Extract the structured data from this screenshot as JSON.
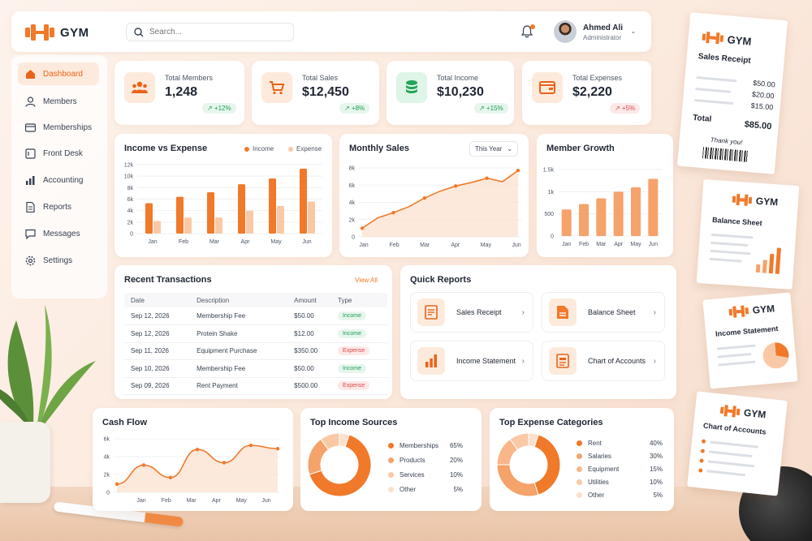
{
  "brand": {
    "name": "GYM"
  },
  "search": {
    "placeholder": "Search..."
  },
  "user": {
    "name": "Ahmed Ali",
    "role": "Administrator"
  },
  "nav": [
    {
      "label": "Dashboard",
      "icon": "home-icon",
      "active": true
    },
    {
      "label": "Members",
      "icon": "user-icon"
    },
    {
      "label": "Memberships",
      "icon": "card-icon"
    },
    {
      "label": "Front Desk",
      "icon": "desk-icon"
    },
    {
      "label": "Accounting",
      "icon": "bar-chart-icon"
    },
    {
      "label": "Reports",
      "icon": "document-icon"
    },
    {
      "label": "Messages",
      "icon": "message-icon"
    },
    {
      "label": "Settings",
      "icon": "gear-icon"
    }
  ],
  "stats": [
    {
      "label": "Total Members",
      "value": "1,248",
      "change": "↗ +12%",
      "trend": "up",
      "icon": "members-icon"
    },
    {
      "label": "Total Sales",
      "value": "$12,450",
      "change": "↗ +8%",
      "trend": "up",
      "icon": "cart-icon"
    },
    {
      "label": "Total Income",
      "value": "$10,230",
      "change": "↗ +15%",
      "trend": "up",
      "icon": "coins-icon"
    },
    {
      "label": "Total Expenses",
      "value": "$2,220",
      "change": "↗ +5%",
      "trend": "down",
      "icon": "wallet-icon"
    }
  ],
  "income_expense": {
    "title": "Income vs Expense",
    "legend_income": "Income",
    "legend_expense": "Expense"
  },
  "monthly_sales": {
    "title": "Monthly Sales",
    "filter": "This Year"
  },
  "member_growth": {
    "title": "Member Growth"
  },
  "cash_flow": {
    "title": "Cash Flow"
  },
  "transactions": {
    "title": "Recent Transactions",
    "view_all": "View All",
    "headers": [
      "Date",
      "Description",
      "Amount",
      "Type"
    ],
    "rows": [
      {
        "date": "Sep 12, 2026",
        "description": "Membership Fee",
        "amount": "$50.00",
        "type": "Income"
      },
      {
        "date": "Sep 12, 2026",
        "description": "Protein Shake",
        "amount": "$12.00",
        "type": "Income"
      },
      {
        "date": "Sep 11, 2026",
        "description": "Equipment Purchase",
        "amount": "$350.00",
        "type": "Expense"
      },
      {
        "date": "Sep 10, 2026",
        "description": "Membership Fee",
        "amount": "$50.00",
        "type": "Income"
      },
      {
        "date": "Sep 09, 2026",
        "description": "Rent Payment",
        "amount": "$500.00",
        "type": "Expense"
      }
    ]
  },
  "quick_reports": {
    "title": "Quick Reports",
    "items": [
      {
        "label": "Sales Receipt",
        "icon": "receipt-icon"
      },
      {
        "label": "Balance Sheet",
        "icon": "document-icon"
      },
      {
        "label": "Income Statement",
        "icon": "bar-chart-icon"
      },
      {
        "label": "Chart of Accounts",
        "icon": "list-icon"
      }
    ]
  },
  "top_income": {
    "title": "Top Income Sources",
    "items": [
      {
        "label": "Memberships",
        "pct": "65%"
      },
      {
        "label": "Products",
        "pct": "20%"
      },
      {
        "label": "Services",
        "pct": "10%"
      },
      {
        "label": "Other",
        "pct": "5%"
      }
    ]
  },
  "top_expense": {
    "title": "Top Expense Categories",
    "items": [
      {
        "label": "Rent",
        "pct": "40%"
      },
      {
        "label": "Salaries",
        "pct": "30%"
      },
      {
        "label": "Equipment",
        "pct": "15%"
      },
      {
        "label": "Utilities",
        "pct": "10%"
      },
      {
        "label": "Other",
        "pct": "5%"
      }
    ]
  },
  "papers": {
    "receipt": {
      "brand": "GYM",
      "title": "Sales Receipt",
      "amounts": [
        "$50.00",
        "$20.00",
        "$15.00"
      ],
      "total_label": "Total",
      "total": "$85.00",
      "thanks": "Thank you!"
    },
    "balance": {
      "brand": "GYM",
      "title": "Balance Sheet"
    },
    "income": {
      "brand": "GYM",
      "title": "Income Statement"
    },
    "accounts": {
      "brand": "GYM",
      "title": "Chart of Accounts"
    }
  },
  "colors": {
    "accent": "#f0792a",
    "accent_light": "#f9c9a6",
    "green": "#1f9d55",
    "red": "#d94848"
  },
  "chart_data": [
    {
      "type": "bar",
      "title": "Income vs Expense",
      "categories": [
        "Jan",
        "Feb",
        "Mar",
        "Apr",
        "May",
        "Jun"
      ],
      "series": [
        {
          "name": "Income",
          "values": [
            5.3,
            6.4,
            7.2,
            8.6,
            9.6,
            11.3
          ]
        },
        {
          "name": "Expense",
          "values": [
            2.2,
            2.8,
            2.8,
            4.0,
            4.8,
            5.6
          ]
        }
      ],
      "yticks": [
        "0",
        "2k",
        "4k",
        "6k",
        "8k",
        "10k",
        "12k"
      ],
      "ylim": [
        0,
        12
      ]
    },
    {
      "type": "line",
      "title": "Monthly Sales",
      "x": [
        "Jan",
        "Feb",
        "Mar",
        "Apr",
        "May",
        "Jun"
      ],
      "points": [
        1.0,
        2.2,
        2.8,
        3.5,
        4.5,
        5.3,
        5.9,
        6.3,
        6.8,
        6.4,
        7.7
      ],
      "yticks": [
        "0",
        "2k",
        "4k",
        "6k",
        "8k"
      ],
      "ylim": [
        0,
        8
      ]
    },
    {
      "type": "bar",
      "title": "Member Growth",
      "categories": [
        "Jan",
        "Feb",
        "Mar",
        "Apr",
        "May",
        "Jun"
      ],
      "values": [
        600,
        720,
        850,
        1000,
        1100,
        1290
      ],
      "yticks": [
        "0",
        "500",
        "1k",
        "1.5k"
      ],
      "ylim": [
        0,
        1500
      ]
    },
    {
      "type": "area",
      "title": "Cash Flow",
      "x": [
        "Jan",
        "Feb",
        "Mar",
        "Apr",
        "May",
        "Jun"
      ],
      "points": [
        1.0,
        3.3,
        1.8,
        5.2,
        3.6,
        5.7,
        5.3
      ],
      "yticks": [
        "0",
        "2k",
        "4k",
        "6k"
      ],
      "ylim": [
        0,
        6.5
      ]
    },
    {
      "type": "pie",
      "title": "Top Income Sources",
      "labels": [
        "Memberships",
        "Products",
        "Services",
        "Other"
      ],
      "values": [
        65,
        20,
        10,
        5
      ]
    },
    {
      "type": "pie",
      "title": "Top Expense Categories",
      "labels": [
        "Rent",
        "Salaries",
        "Equipment",
        "Utilities",
        "Other"
      ],
      "values": [
        40,
        30,
        15,
        10,
        5
      ]
    }
  ]
}
